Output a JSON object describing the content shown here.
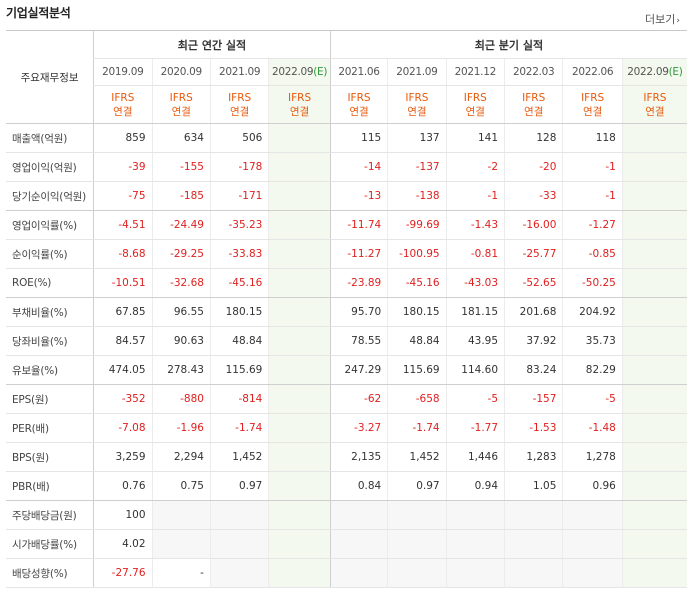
{
  "title": "기업실적분석",
  "more_label": "더보기",
  "header": {
    "row_header": "주요재무정보",
    "annual_group": "최근 연간 실적",
    "quarter_group": "최근 분기 실적",
    "annual_periods": [
      "2019.09",
      "2020.09",
      "2021.09",
      "2022.09"
    ],
    "annual_estimate_flags": [
      false,
      false,
      false,
      true
    ],
    "quarter_periods": [
      "2021.06",
      "2021.09",
      "2021.12",
      "2022.03",
      "2022.06",
      "2022.09"
    ],
    "quarter_estimate_flags": [
      false,
      false,
      false,
      false,
      false,
      true
    ],
    "estimate_mark": "(E)",
    "ifrs_line1": "IFRS",
    "ifrs_line2": "연결"
  },
  "rows": [
    {
      "label": "매출액(억원)",
      "annual": [
        "859",
        "634",
        "506",
        ""
      ],
      "quarter": [
        "115",
        "137",
        "141",
        "128",
        "118",
        ""
      ]
    },
    {
      "label": "영업이익(억원)",
      "annual": [
        "-39",
        "-155",
        "-178",
        ""
      ],
      "quarter": [
        "-14",
        "-137",
        "-2",
        "-20",
        "-1",
        ""
      ]
    },
    {
      "label": "당기순이익(억원)",
      "annual": [
        "-75",
        "-185",
        "-171",
        ""
      ],
      "quarter": [
        "-13",
        "-138",
        "-1",
        "-33",
        "-1",
        ""
      ]
    },
    {
      "label": "영업이익률(%)",
      "annual": [
        "-4.51",
        "-24.49",
        "-35.23",
        ""
      ],
      "quarter": [
        "-11.74",
        "-99.69",
        "-1.43",
        "-16.00",
        "-1.27",
        ""
      ]
    },
    {
      "label": "순이익률(%)",
      "annual": [
        "-8.68",
        "-29.25",
        "-33.83",
        ""
      ],
      "quarter": [
        "-11.27",
        "-100.95",
        "-0.81",
        "-25.77",
        "-0.85",
        ""
      ]
    },
    {
      "label": "ROE(%)",
      "annual": [
        "-10.51",
        "-32.68",
        "-45.16",
        ""
      ],
      "quarter": [
        "-23.89",
        "-45.16",
        "-43.03",
        "-52.65",
        "-50.25",
        ""
      ]
    },
    {
      "label": "부채비율(%)",
      "annual": [
        "67.85",
        "96.55",
        "180.15",
        ""
      ],
      "quarter": [
        "95.70",
        "180.15",
        "181.15",
        "201.68",
        "204.92",
        ""
      ]
    },
    {
      "label": "당좌비율(%)",
      "annual": [
        "84.57",
        "90.63",
        "48.84",
        ""
      ],
      "quarter": [
        "78.55",
        "48.84",
        "43.95",
        "37.92",
        "35.73",
        ""
      ]
    },
    {
      "label": "유보율(%)",
      "annual": [
        "474.05",
        "278.43",
        "115.69",
        ""
      ],
      "quarter": [
        "247.29",
        "115.69",
        "114.60",
        "83.24",
        "82.29",
        ""
      ]
    },
    {
      "label": "EPS(원)",
      "annual": [
        "-352",
        "-880",
        "-814",
        ""
      ],
      "quarter": [
        "-62",
        "-658",
        "-5",
        "-157",
        "-5",
        ""
      ]
    },
    {
      "label": "PER(배)",
      "annual": [
        "-7.08",
        "-1.96",
        "-1.74",
        ""
      ],
      "quarter": [
        "-3.27",
        "-1.74",
        "-1.77",
        "-1.53",
        "-1.48",
        ""
      ]
    },
    {
      "label": "BPS(원)",
      "annual": [
        "3,259",
        "2,294",
        "1,452",
        ""
      ],
      "quarter": [
        "2,135",
        "1,452",
        "1,446",
        "1,283",
        "1,278",
        ""
      ]
    },
    {
      "label": "PBR(배)",
      "annual": [
        "0.76",
        "0.75",
        "0.97",
        ""
      ],
      "quarter": [
        "0.84",
        "0.97",
        "0.94",
        "1.05",
        "0.96",
        ""
      ]
    },
    {
      "label": "주당배당금(원)",
      "annual": [
        "100",
        "",
        "",
        ""
      ],
      "quarter": [
        "",
        "",
        "",
        "",
        "",
        ""
      ],
      "dividend": true
    },
    {
      "label": "시가배당률(%)",
      "annual": [
        "4.02",
        "",
        "",
        ""
      ],
      "quarter": [
        "",
        "",
        "",
        "",
        "",
        ""
      ],
      "dividend": true
    },
    {
      "label": "배당성향(%)",
      "annual": [
        "-27.76",
        "-",
        "",
        ""
      ],
      "quarter": [
        "",
        "",
        "",
        "",
        "",
        ""
      ],
      "dividend": true
    }
  ],
  "group_break_after": [
    2,
    5,
    8,
    12
  ],
  "colors": {
    "negative": "#e02020",
    "ifrs": "#e8590c",
    "estimate_bg": "#f3f9ee",
    "estimate_mark": "#2e9b3a"
  }
}
